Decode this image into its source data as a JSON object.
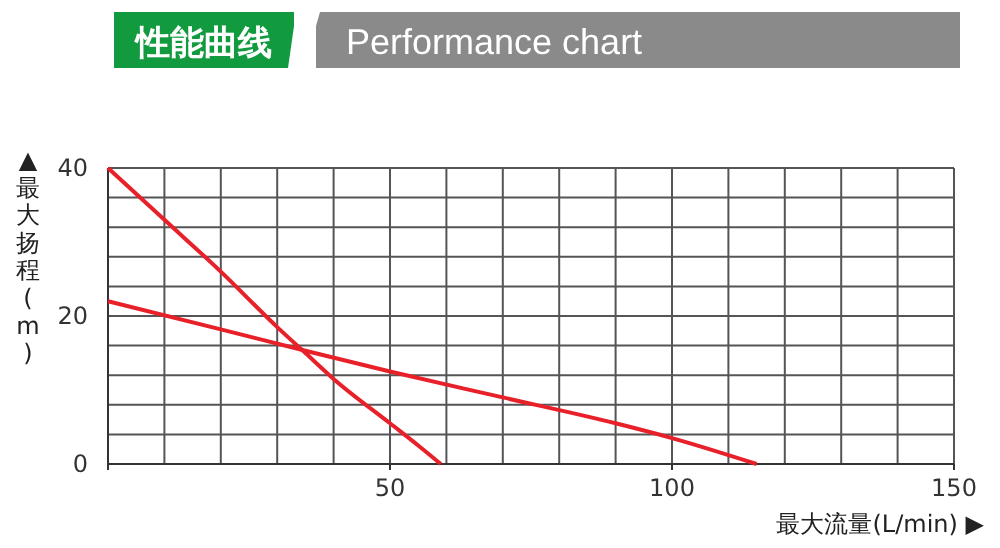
{
  "chart_data": {
    "type": "line",
    "title": "性能曲线",
    "subtitle": "Performance chart",
    "xlabel": "最大流量(L/min) ▶",
    "ylabel": "▲最大扬程(m)",
    "series": [
      {
        "color": "#e8202a",
        "x": [
          0,
          10,
          20,
          30,
          35,
          40,
          50,
          55,
          59
        ],
        "values": [
          40,
          33,
          26,
          18.5,
          15,
          11.5,
          5.5,
          2.5,
          0
        ]
      },
      {
        "color": "#e8202a",
        "x": [
          0,
          20,
          35,
          50,
          70,
          90,
          100,
          115
        ],
        "values": [
          22,
          18.2,
          15.3,
          12.5,
          9,
          5.5,
          3.5,
          0
        ]
      }
    ],
    "xlim": [
      0,
      150
    ],
    "xticks": [
      {
        "value": 0,
        "label": null
      },
      50,
      100,
      150
    ],
    "ylim": [
      0,
      40
    ],
    "yticks": [
      0,
      20,
      40
    ],
    "grid": true,
    "marker": "none"
  }
}
